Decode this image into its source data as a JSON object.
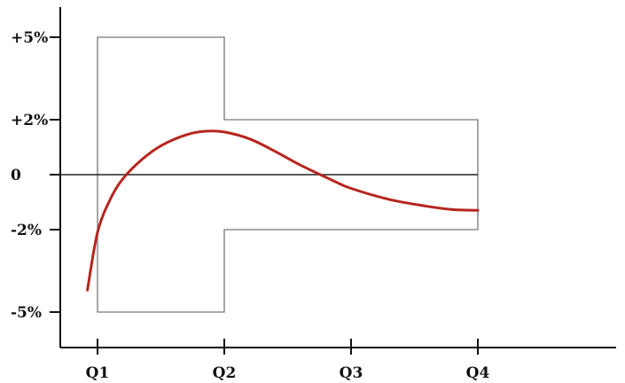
{
  "chart_data": {
    "type": "line",
    "title": "",
    "xlabel": "",
    "ylabel": "",
    "x_ticks": [
      {
        "label": "Q1",
        "value": 1
      },
      {
        "label": "Q2",
        "value": 2
      },
      {
        "label": "Q3",
        "value": 3
      },
      {
        "label": "Q4",
        "value": 4
      }
    ],
    "y_ticks": [
      {
        "label": "+5%",
        "value": 5
      },
      {
        "label": "+2%",
        "value": 2
      },
      {
        "label": "0",
        "value": 0
      },
      {
        "label": "-2%",
        "value": -2
      },
      {
        "label": "-5%",
        "value": -5
      }
    ],
    "xlim": [
      0.78,
      4.15
    ],
    "ylim": [
      -6.4,
      6.1
    ],
    "grid": false,
    "tolerance_band": {
      "segments": [
        {
          "x_start": 1,
          "x_end": 2,
          "upper": 5,
          "lower": -5
        },
        {
          "x_start": 2,
          "x_end": 4,
          "upper": 2,
          "lower": -2
        }
      ],
      "color": "#777777"
    },
    "zero_line": {
      "y": 0,
      "color": "#222222"
    },
    "series": [
      {
        "color": "#b5261e",
        "x": [
          0.92,
          1.0,
          1.1,
          1.2,
          1.35,
          1.5,
          1.7,
          1.85,
          2.0,
          2.2,
          2.4,
          2.6,
          2.85,
          3.0,
          3.3,
          3.6,
          3.8,
          4.0
        ],
        "y": [
          -4.2,
          -2.1,
          -0.9,
          -0.15,
          0.55,
          1.05,
          1.45,
          1.58,
          1.55,
          1.3,
          0.85,
          0.35,
          -0.2,
          -0.5,
          -0.9,
          -1.15,
          -1.27,
          -1.3
        ]
      }
    ]
  }
}
